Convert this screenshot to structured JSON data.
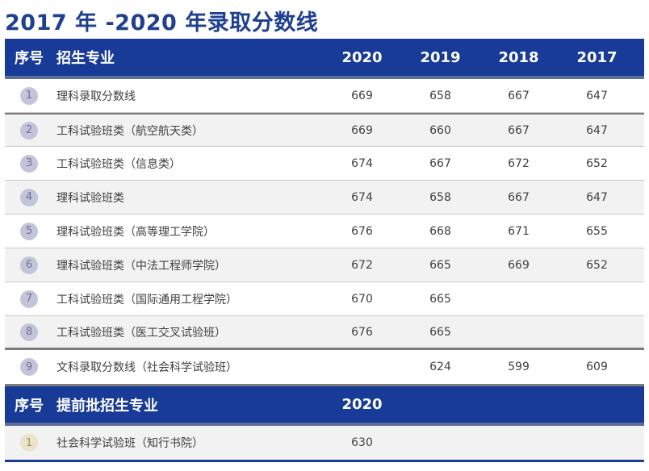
{
  "page_title": "2017 年 -2020 年录取分数线",
  "main_table": {
    "headers": [
      "序号",
      "招生专业",
      "2020",
      "2019",
      "2018",
      "2017"
    ],
    "rows": [
      {
        "num": "1",
        "name": "理科录取分数线",
        "y2020": "669",
        "y2019": "658",
        "y2018": "667",
        "y2017": "647"
      },
      {
        "num": "2",
        "name": "工科试验班类（航空航天类）",
        "y2020": "669",
        "y2019": "660",
        "y2018": "667",
        "y2017": "647"
      },
      {
        "num": "3",
        "name": "工科试验班类（信息类）",
        "y2020": "674",
        "y2019": "667",
        "y2018": "672",
        "y2017": "652"
      },
      {
        "num": "4",
        "name": "理科试验班类",
        "y2020": "674",
        "y2019": "658",
        "y2018": "667",
        "y2017": "647"
      },
      {
        "num": "5",
        "name": "理科试验班类（高等理工学院）",
        "y2020": "676",
        "y2019": "668",
        "y2018": "671",
        "y2017": "655"
      },
      {
        "num": "6",
        "name": "理科试验班类（中法工程师学院）",
        "y2020": "672",
        "y2019": "665",
        "y2018": "669",
        "y2017": "652"
      },
      {
        "num": "7",
        "name": "工科试验班类（国际通用工程学院）",
        "y2020": "670",
        "y2019": "665",
        "y2018": "",
        "y2017": ""
      },
      {
        "num": "8",
        "name": "工科试验班类（医工交叉试验班）",
        "y2020": "676",
        "y2019": "665",
        "y2018": "",
        "y2017": ""
      },
      {
        "num": "9",
        "name": "文科录取分数线（社会科学试验班）",
        "y2020": "",
        "y2019": "624",
        "y2018": "599",
        "y2017": "609"
      }
    ]
  },
  "early_table": {
    "headers": [
      "序号",
      "提前批招生专业",
      "2020"
    ],
    "rows": [
      {
        "num": "1",
        "name": "社会科学试验班（知行书院）",
        "y2020": "630"
      }
    ]
  },
  "colors": {
    "header_bg": "#173b96",
    "title": "#1f3f8f",
    "badge": "#c3c4da",
    "badge_early": "#ece4c9",
    "row_alt": "#f1f2f1"
  }
}
